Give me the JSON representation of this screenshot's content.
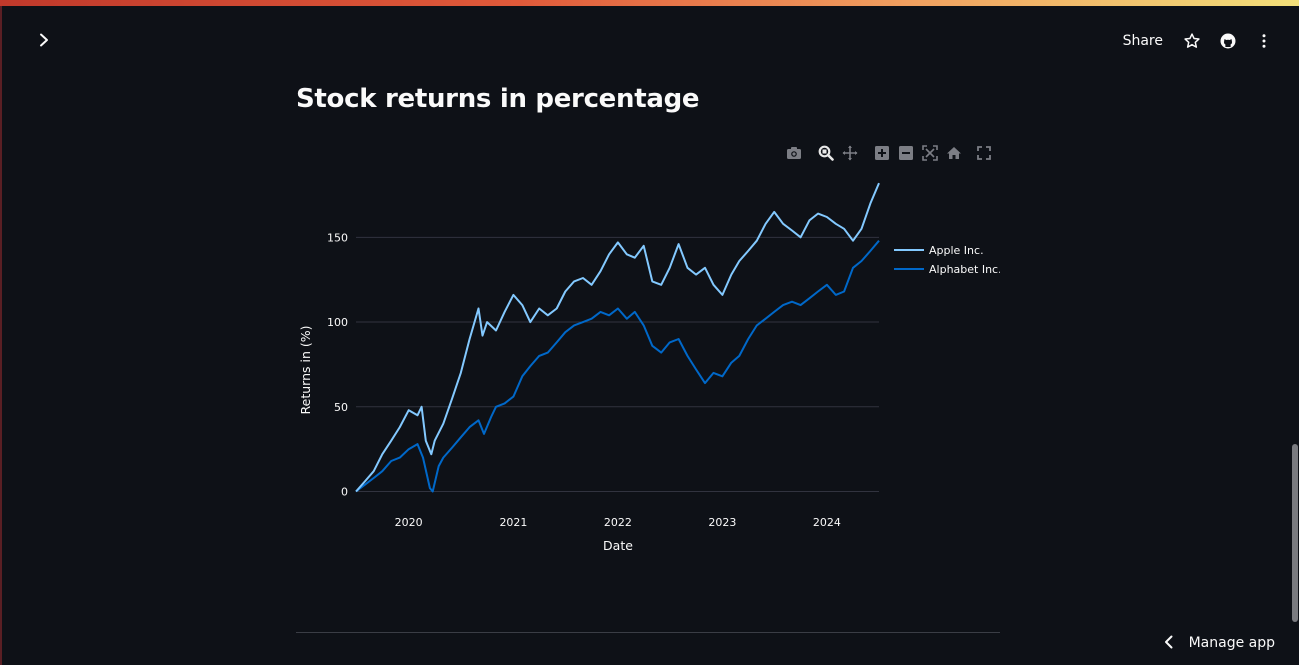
{
  "header": {
    "sidebar_toggle_icon": "chevron-right-icon",
    "share_label": "Share",
    "icons": [
      "star-icon",
      "github-icon",
      "more-vertical-icon"
    ]
  },
  "main": {
    "title": "Stock returns in percentage"
  },
  "modebar": {
    "icons": [
      "camera-icon",
      "zoom-icon",
      "pan-icon",
      "zoom-in-icon",
      "zoom-out-icon",
      "autoscale-icon",
      "reset-axes-icon",
      "fullscreen-icon"
    ]
  },
  "footer": {
    "manage_app_label": "Manage app",
    "manage_app_icon": "chevron-left-icon"
  },
  "colors": {
    "background": "#0e1117",
    "apple": "#83c9ff",
    "alphabet": "#0068c9",
    "grid": "#31333f"
  },
  "chart_data": {
    "type": "line",
    "title": "",
    "xlabel": "Date",
    "ylabel": "Returns in (%)",
    "x_ticks": [
      "2020",
      "2021",
      "2022",
      "2023",
      "2024"
    ],
    "y_ticks": [
      0,
      50,
      100,
      150
    ],
    "xlim": [
      "2019-07-01",
      "2024-07-01"
    ],
    "ylim": [
      -5,
      185
    ],
    "grid": true,
    "legend_position": "top-right",
    "series": [
      {
        "name": "Apple Inc.",
        "color": "#83c9ff",
        "points": [
          [
            "2019-07-01",
            0
          ],
          [
            "2019-08-01",
            6
          ],
          [
            "2019-09-01",
            12
          ],
          [
            "2019-10-01",
            22
          ],
          [
            "2019-11-01",
            30
          ],
          [
            "2019-12-01",
            38
          ],
          [
            "2020-01-01",
            48
          ],
          [
            "2020-02-01",
            45
          ],
          [
            "2020-02-15",
            50
          ],
          [
            "2020-03-01",
            30
          ],
          [
            "2020-03-20",
            22
          ],
          [
            "2020-04-01",
            30
          ],
          [
            "2020-05-01",
            40
          ],
          [
            "2020-06-01",
            55
          ],
          [
            "2020-07-01",
            70
          ],
          [
            "2020-08-01",
            90
          ],
          [
            "2020-09-01",
            108
          ],
          [
            "2020-09-15",
            92
          ],
          [
            "2020-10-01",
            100
          ],
          [
            "2020-11-01",
            95
          ],
          [
            "2020-12-01",
            106
          ],
          [
            "2021-01-01",
            116
          ],
          [
            "2021-02-01",
            110
          ],
          [
            "2021-03-01",
            100
          ],
          [
            "2021-04-01",
            108
          ],
          [
            "2021-05-01",
            104
          ],
          [
            "2021-06-01",
            108
          ],
          [
            "2021-07-01",
            118
          ],
          [
            "2021-08-01",
            124
          ],
          [
            "2021-09-01",
            126
          ],
          [
            "2021-10-01",
            122
          ],
          [
            "2021-11-01",
            130
          ],
          [
            "2021-12-01",
            140
          ],
          [
            "2022-01-01",
            147
          ],
          [
            "2022-02-01",
            140
          ],
          [
            "2022-03-01",
            138
          ],
          [
            "2022-04-01",
            145
          ],
          [
            "2022-05-01",
            124
          ],
          [
            "2022-06-01",
            122
          ],
          [
            "2022-07-01",
            132
          ],
          [
            "2022-08-01",
            146
          ],
          [
            "2022-09-01",
            132
          ],
          [
            "2022-10-01",
            128
          ],
          [
            "2022-11-01",
            132
          ],
          [
            "2022-12-01",
            122
          ],
          [
            "2023-01-01",
            116
          ],
          [
            "2023-02-01",
            128
          ],
          [
            "2023-03-01",
            136
          ],
          [
            "2023-04-01",
            142
          ],
          [
            "2023-05-01",
            148
          ],
          [
            "2023-06-01",
            158
          ],
          [
            "2023-07-01",
            165
          ],
          [
            "2023-08-01",
            158
          ],
          [
            "2023-09-01",
            154
          ],
          [
            "2023-10-01",
            150
          ],
          [
            "2023-11-01",
            160
          ],
          [
            "2023-12-01",
            164
          ],
          [
            "2024-01-01",
            162
          ],
          [
            "2024-02-01",
            158
          ],
          [
            "2024-03-01",
            155
          ],
          [
            "2024-04-01",
            148
          ],
          [
            "2024-05-01",
            155
          ],
          [
            "2024-06-01",
            170
          ],
          [
            "2024-07-01",
            182
          ]
        ]
      },
      {
        "name": "Alphabet Inc.",
        "color": "#0068c9",
        "points": [
          [
            "2019-07-01",
            0
          ],
          [
            "2019-08-01",
            4
          ],
          [
            "2019-09-01",
            8
          ],
          [
            "2019-10-01",
            12
          ],
          [
            "2019-11-01",
            18
          ],
          [
            "2019-12-01",
            20
          ],
          [
            "2020-01-01",
            25
          ],
          [
            "2020-02-01",
            28
          ],
          [
            "2020-02-20",
            20
          ],
          [
            "2020-03-15",
            2
          ],
          [
            "2020-03-25",
            0
          ],
          [
            "2020-04-15",
            15
          ],
          [
            "2020-05-01",
            20
          ],
          [
            "2020-06-01",
            26
          ],
          [
            "2020-07-01",
            32
          ],
          [
            "2020-08-01",
            38
          ],
          [
            "2020-09-01",
            42
          ],
          [
            "2020-09-20",
            34
          ],
          [
            "2020-10-15",
            44
          ],
          [
            "2020-11-01",
            50
          ],
          [
            "2020-12-01",
            52
          ],
          [
            "2021-01-01",
            56
          ],
          [
            "2021-02-01",
            68
          ],
          [
            "2021-03-01",
            74
          ],
          [
            "2021-04-01",
            80
          ],
          [
            "2021-05-01",
            82
          ],
          [
            "2021-06-01",
            88
          ],
          [
            "2021-07-01",
            94
          ],
          [
            "2021-08-01",
            98
          ],
          [
            "2021-09-01",
            100
          ],
          [
            "2021-10-01",
            102
          ],
          [
            "2021-11-01",
            106
          ],
          [
            "2021-12-01",
            104
          ],
          [
            "2022-01-01",
            108
          ],
          [
            "2022-02-01",
            102
          ],
          [
            "2022-03-01",
            106
          ],
          [
            "2022-04-01",
            98
          ],
          [
            "2022-05-01",
            86
          ],
          [
            "2022-06-01",
            82
          ],
          [
            "2022-07-01",
            88
          ],
          [
            "2022-08-01",
            90
          ],
          [
            "2022-09-01",
            80
          ],
          [
            "2022-10-01",
            72
          ],
          [
            "2022-11-01",
            64
          ],
          [
            "2022-12-01",
            70
          ],
          [
            "2023-01-01",
            68
          ],
          [
            "2023-02-01",
            76
          ],
          [
            "2023-03-01",
            80
          ],
          [
            "2023-04-01",
            90
          ],
          [
            "2023-05-01",
            98
          ],
          [
            "2023-06-01",
            102
          ],
          [
            "2023-07-01",
            106
          ],
          [
            "2023-08-01",
            110
          ],
          [
            "2023-09-01",
            112
          ],
          [
            "2023-10-01",
            110
          ],
          [
            "2023-11-01",
            114
          ],
          [
            "2023-12-01",
            118
          ],
          [
            "2024-01-01",
            122
          ],
          [
            "2024-02-01",
            116
          ],
          [
            "2024-03-01",
            118
          ],
          [
            "2024-04-01",
            132
          ],
          [
            "2024-05-01",
            136
          ],
          [
            "2024-06-01",
            142
          ],
          [
            "2024-07-01",
            148
          ]
        ]
      }
    ]
  }
}
